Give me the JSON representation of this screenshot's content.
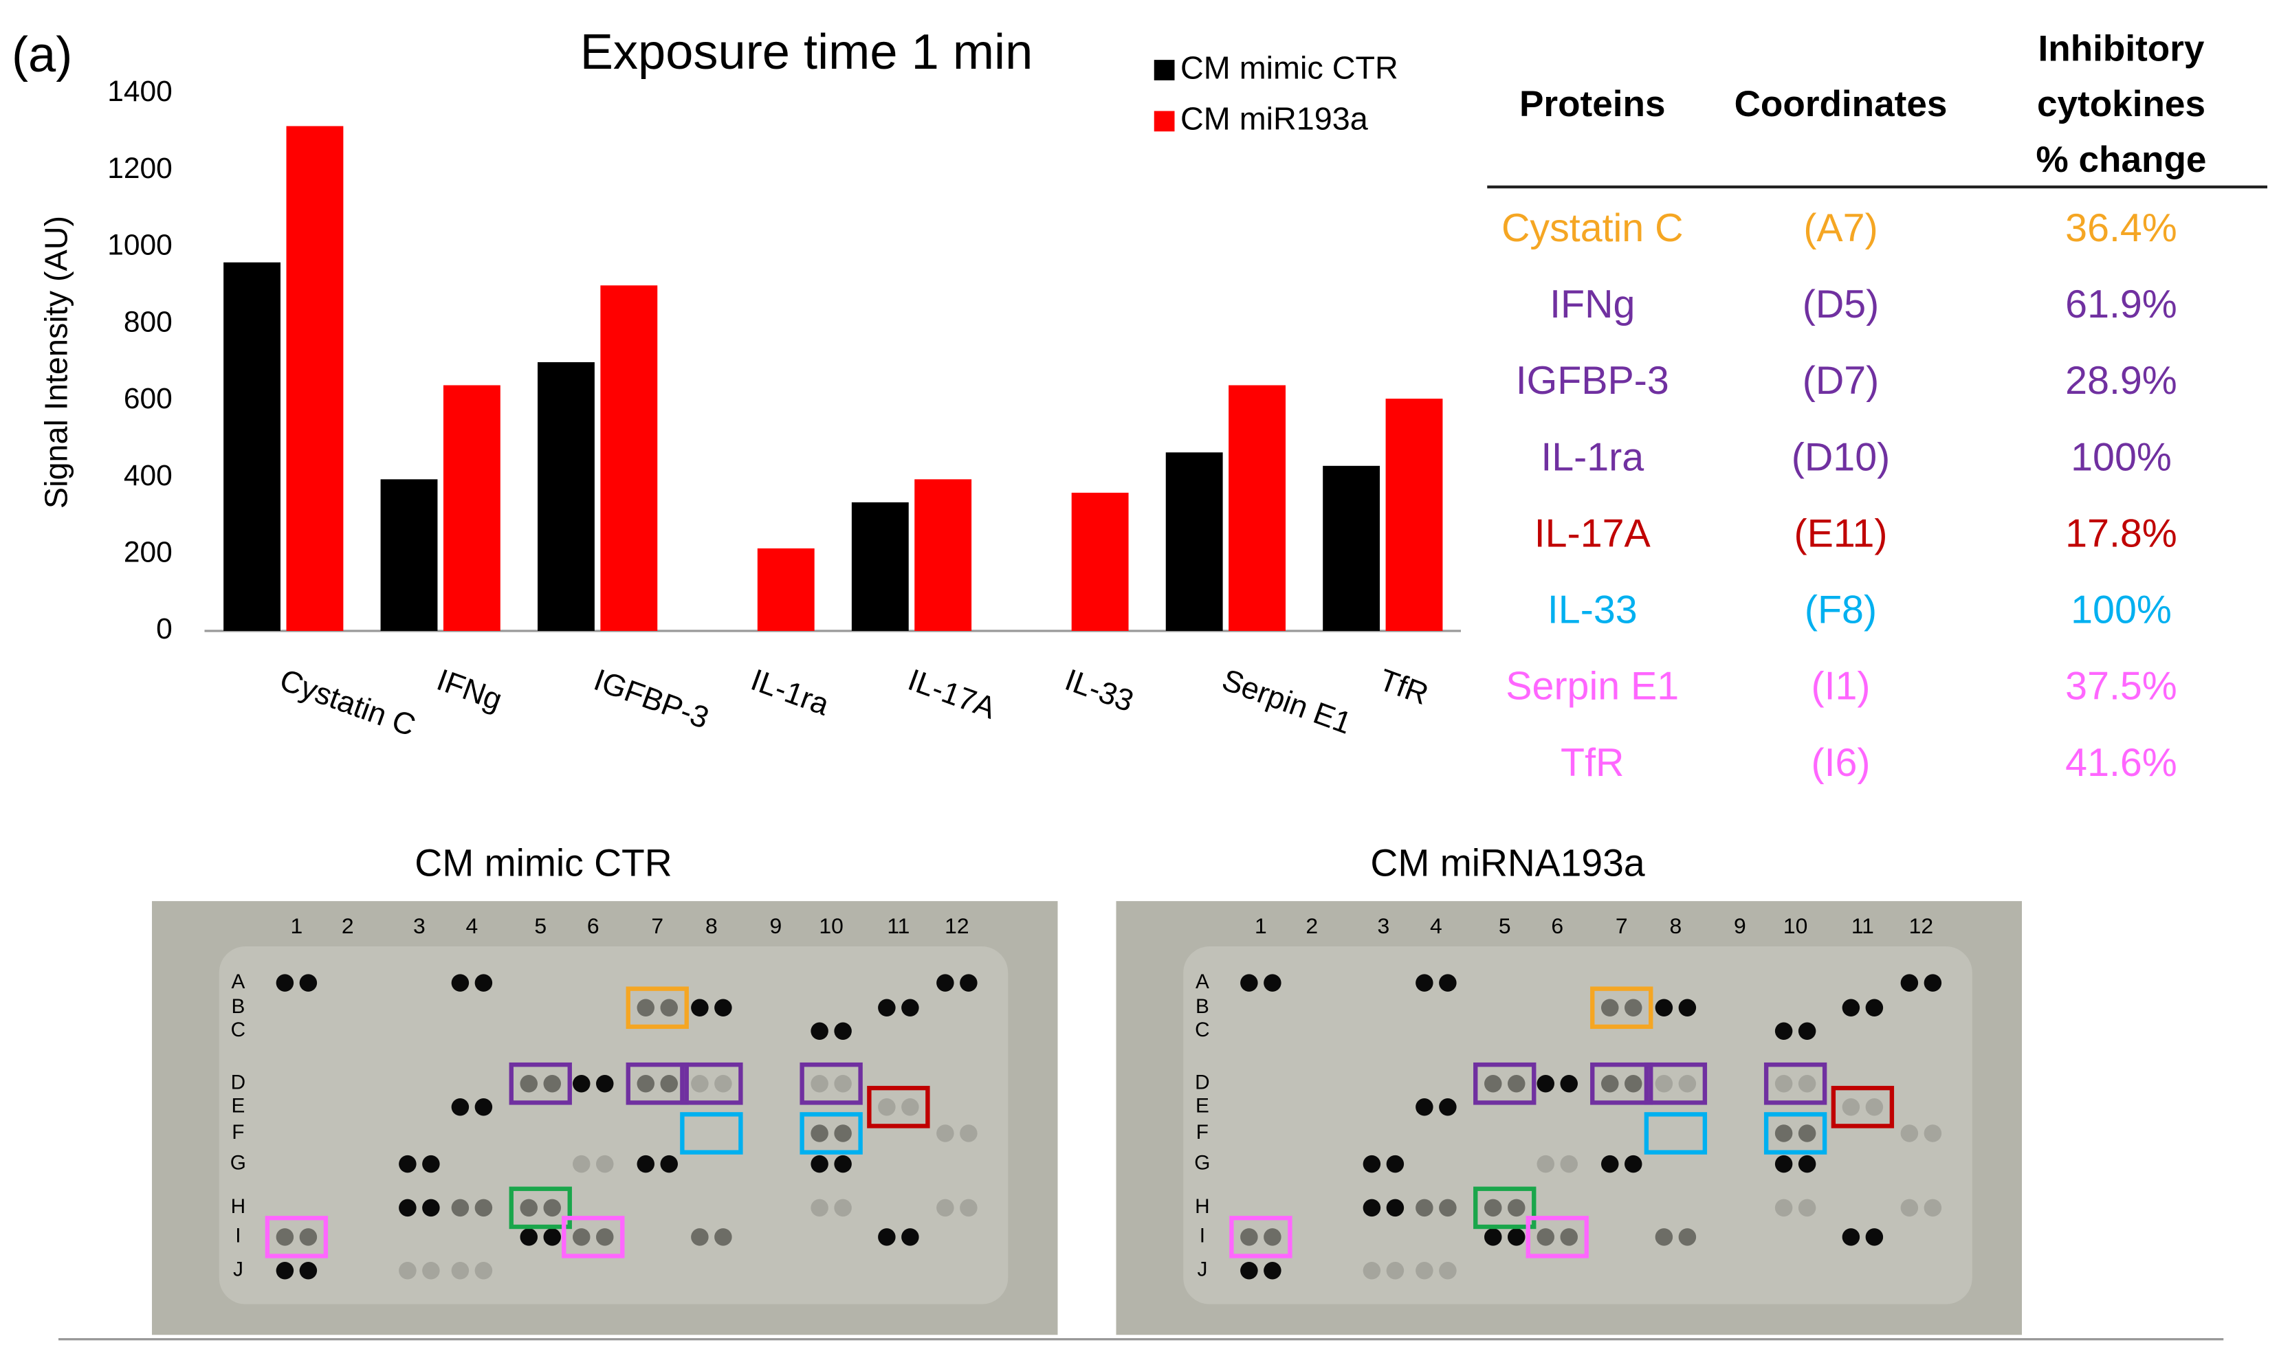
{
  "chart_data": {
    "type": "bar",
    "panel_label": "(a)",
    "title": "Exposure time 1 min",
    "y_label": "Signal Intensity (AU)",
    "categories": [
      "Cystatin C",
      "IFNg",
      "IGFBP-3",
      "IL-1ra",
      "IL-17A",
      "IL-33",
      "Serpin E1",
      "TfR"
    ],
    "series": [
      {
        "name": "CM mimic CTR",
        "color": "#000000",
        "values": [
          960,
          395,
          700,
          0,
          335,
          0,
          465,
          430
        ]
      },
      {
        "name": "CM miR193a",
        "color": "#ff0000",
        "values": [
          1315,
          640,
          900,
          215,
          395,
          360,
          640,
          605
        ]
      }
    ],
    "ylim": [
      0,
      1400
    ],
    "yticks": [
      0,
      200,
      400,
      600,
      800,
      1000,
      1200,
      1400
    ],
    "grid": false
  },
  "table": {
    "headers": [
      "Proteins",
      "Coordinates",
      [
        "Inhibitory",
        "cytokines",
        "% change"
      ]
    ],
    "rows": [
      [
        "Cystatin C",
        "(A7)",
        "36.4%"
      ],
      [
        "IFNg",
        "(D5)",
        "61.9%"
      ],
      [
        "IGFBP-3",
        "(D7)",
        "28.9%"
      ],
      [
        "IL-1ra",
        "(D10)",
        "100%"
      ],
      [
        "IL-17A",
        "(E11)",
        "17.8%"
      ],
      [
        "IL-33",
        "(F8)",
        "100%"
      ],
      [
        "Serpin E1",
        "(I1)",
        "37.5%"
      ],
      [
        "TfR",
        "(I6)",
        "41.6%"
      ]
    ],
    "row_colors": [
      "#f5a623",
      "#7030a0",
      "#7030a0",
      "#7030a0",
      "#c00000",
      "#00b0f0",
      "#ff66ff",
      "#ff66ff"
    ]
  },
  "blots": [
    {
      "title": "CM mimic CTR"
    },
    {
      "title": "CM miRNA193a"
    }
  ],
  "blot_columns": [
    "1",
    "2",
    "3",
    "4",
    "5",
    "6",
    "7",
    "8",
    "9",
    "10",
    "11",
    "12"
  ],
  "blot_rows": [
    "A",
    "B",
    "C",
    "D",
    "E",
    "F",
    "G",
    "H",
    "I",
    "J"
  ]
}
